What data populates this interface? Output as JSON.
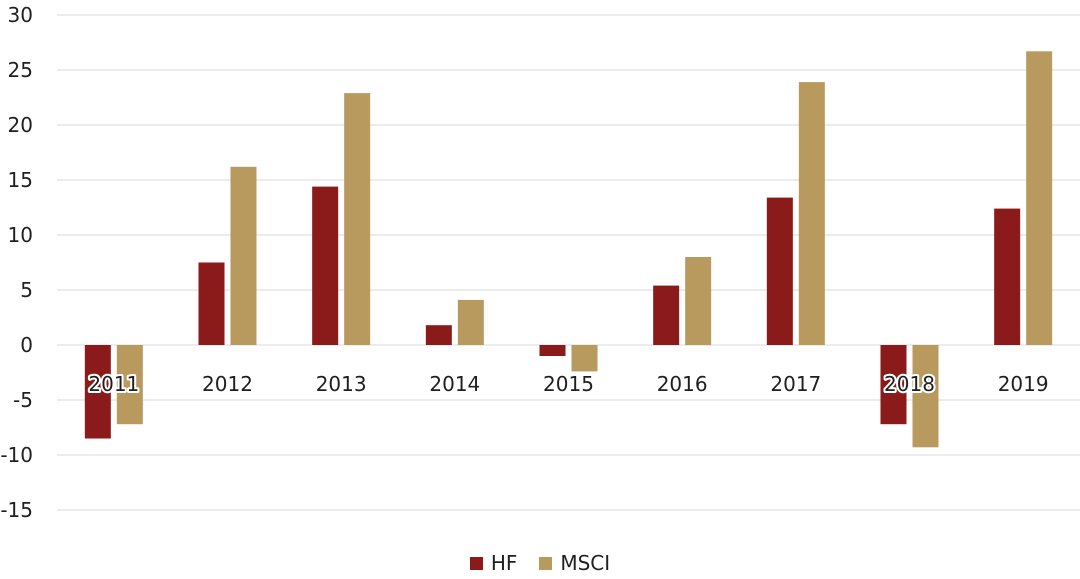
{
  "chart_data": {
    "type": "bar",
    "categories": [
      "2011",
      "2012",
      "2013",
      "2014",
      "2015",
      "2016",
      "2017",
      "2018",
      "2019"
    ],
    "series": [
      {
        "name": "HF",
        "color": "#8b1a1a",
        "values": [
          -8.5,
          7.5,
          14.4,
          1.8,
          -1.0,
          5.4,
          13.4,
          -7.2,
          12.4
        ]
      },
      {
        "name": "MSCI",
        "color": "#b89a5e",
        "values": [
          -7.2,
          16.2,
          22.9,
          4.1,
          -2.4,
          8.0,
          23.9,
          -9.3,
          26.7
        ]
      }
    ],
    "yticks": [
      "30",
      "25",
      "20",
      "15",
      "10",
      "5",
      "0",
      "-5",
      "-10",
      "-15"
    ],
    "ylim": [
      -15,
      30
    ],
    "grid": true,
    "legend_position": "bottom"
  }
}
